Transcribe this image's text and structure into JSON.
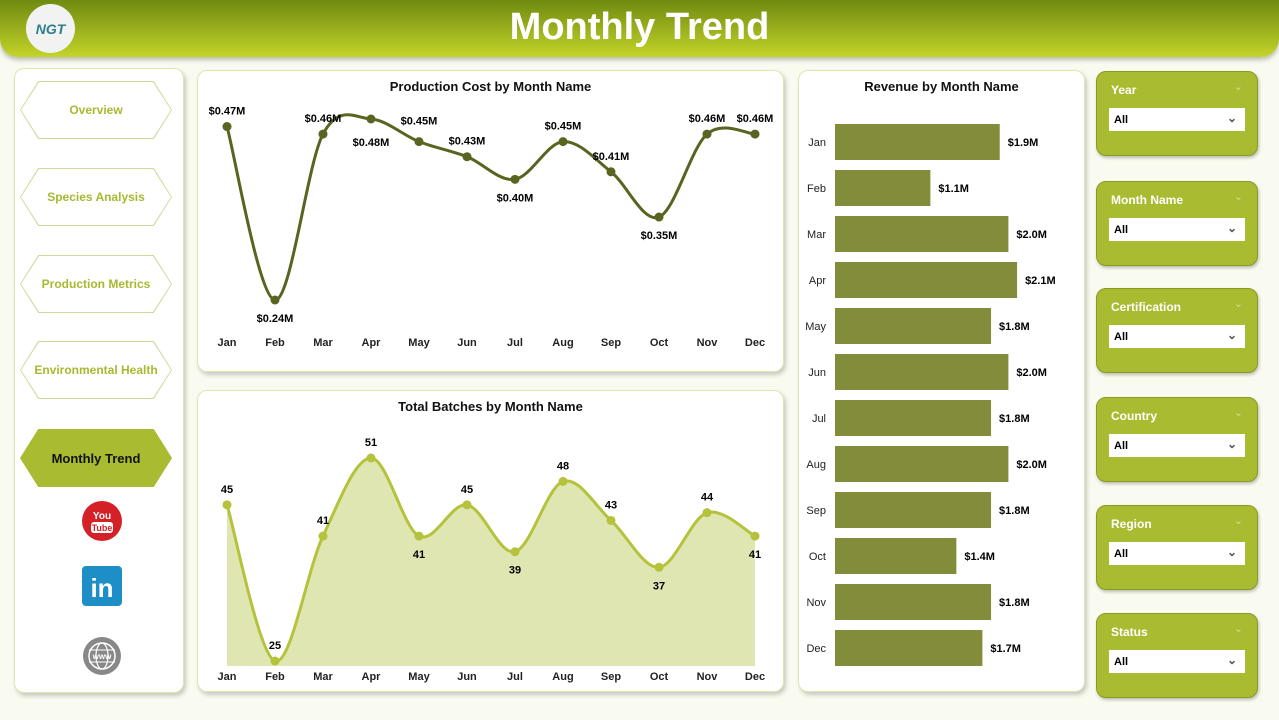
{
  "header": {
    "title": "Monthly Trend",
    "logo_text": "NGT"
  },
  "nav": {
    "items": [
      {
        "label": "Overview"
      },
      {
        "label": "Species Analysis"
      },
      {
        "label": "Production Metrics"
      },
      {
        "label": "Environmental Health"
      },
      {
        "label": "Monthly Trend",
        "active": true
      }
    ]
  },
  "social": {
    "youtube": "youtube-icon",
    "linkedin": "linkedin-icon",
    "web": "globe-icon"
  },
  "filters": [
    {
      "label": "Year",
      "value": "All"
    },
    {
      "label": "Month Name",
      "value": "All"
    },
    {
      "label": "Certification",
      "value": "All"
    },
    {
      "label": "Country",
      "value": "All"
    },
    {
      "label": "Region",
      "value": "All"
    },
    {
      "label": "Status",
      "value": "All"
    }
  ],
  "colors": {
    "accent": "#a9bb30",
    "cost_line": "#5a6420",
    "batch_line": "#b5c23c",
    "batch_area": "#dfe6b2",
    "bar": "#838c3a"
  },
  "chart_data": [
    {
      "type": "line",
      "title": "Production Cost by Month Name",
      "categories": [
        "Jan",
        "Feb",
        "Mar",
        "Apr",
        "May",
        "Jun",
        "Jul",
        "Aug",
        "Sep",
        "Oct",
        "Nov",
        "Dec"
      ],
      "values": [
        0.47,
        0.24,
        0.46,
        0.48,
        0.45,
        0.43,
        0.4,
        0.45,
        0.41,
        0.35,
        0.46,
        0.46
      ],
      "labels": [
        "$0.47M",
        "$0.24M",
        "$0.46M",
        "$0.48M",
        "$0.45M",
        "$0.43M",
        "$0.40M",
        "$0.45M",
        "$0.41M",
        "$0.35M",
        "$0.46M",
        "$0.46M"
      ],
      "unit": "$M",
      "grid": false
    },
    {
      "type": "area",
      "title": "Total Batches by Month Name",
      "categories": [
        "Jan",
        "Feb",
        "Mar",
        "Apr",
        "May",
        "Jun",
        "Jul",
        "Aug",
        "Sep",
        "Oct",
        "Nov",
        "Dec"
      ],
      "values": [
        45,
        25,
        41,
        51,
        41,
        45,
        39,
        48,
        43,
        37,
        44,
        41
      ],
      "labels": [
        "45",
        "25",
        "41",
        "51",
        "41",
        "45",
        "39",
        "48",
        "43",
        "37",
        "44",
        "41"
      ],
      "grid": false
    },
    {
      "type": "bar",
      "orientation": "horizontal",
      "title": "Revenue by Month Name",
      "categories": [
        "Jan",
        "Feb",
        "Mar",
        "Apr",
        "May",
        "Jun",
        "Jul",
        "Aug",
        "Sep",
        "Oct",
        "Nov",
        "Dec"
      ],
      "values": [
        1.9,
        1.1,
        2.0,
        2.1,
        1.8,
        2.0,
        1.8,
        2.0,
        1.8,
        1.4,
        1.8,
        1.7
      ],
      "labels": [
        "$1.9M",
        "$1.1M",
        "$2.0M",
        "$2.1M",
        "$1.8M",
        "$2.0M",
        "$1.8M",
        "$2.0M",
        "$1.8M",
        "$1.4M",
        "$1.8M",
        "$1.7M"
      ],
      "unit": "$M",
      "grid": false
    }
  ]
}
